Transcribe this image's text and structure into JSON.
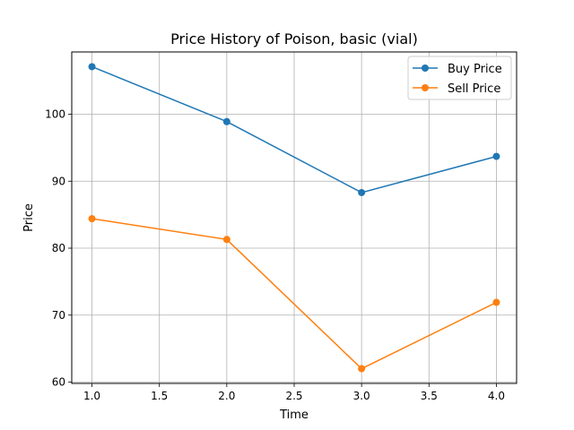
{
  "chart_data": {
    "type": "line",
    "title": "Price History of Poison, basic (vial)",
    "xlabel": "Time",
    "ylabel": "Price",
    "x": [
      1.0,
      2.0,
      3.0,
      4.0
    ],
    "xlim": [
      0.85,
      4.15
    ],
    "ylim": [
      59.8,
      109.3
    ],
    "xticks": [
      "1.0",
      "1.5",
      "2.0",
      "2.5",
      "3.0",
      "3.5",
      "4.0"
    ],
    "xtick_values": [
      1.0,
      1.5,
      2.0,
      2.5,
      3.0,
      3.5,
      4.0
    ],
    "yticks": [
      "60",
      "70",
      "80",
      "90",
      "100"
    ],
    "ytick_values": [
      60,
      70,
      80,
      90,
      100
    ],
    "grid": true,
    "legend_position": "top-right",
    "series": [
      {
        "name": "Buy Price",
        "color": "#1f77b4",
        "marker": "circle",
        "values": [
          107.1,
          98.9,
          88.3,
          93.7
        ]
      },
      {
        "name": "Sell Price",
        "color": "#ff7f0e",
        "marker": "circle",
        "values": [
          84.4,
          81.3,
          62.0,
          71.9
        ]
      }
    ]
  }
}
